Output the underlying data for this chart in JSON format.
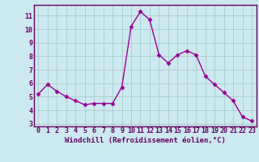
{
  "x": [
    0,
    1,
    2,
    3,
    4,
    5,
    6,
    7,
    8,
    9,
    10,
    11,
    12,
    13,
    14,
    15,
    16,
    17,
    18,
    19,
    20,
    21,
    22,
    23
  ],
  "y": [
    5.2,
    5.9,
    5.4,
    5.0,
    4.7,
    4.4,
    4.5,
    4.5,
    4.5,
    5.7,
    10.2,
    11.3,
    10.7,
    8.1,
    7.5,
    8.1,
    8.4,
    8.1,
    6.5,
    5.9,
    5.3,
    4.7,
    3.5,
    3.2
  ],
  "line_color": "#990099",
  "marker": "D",
  "markersize": 2.5,
  "linewidth": 1.0,
  "bg_color": "#cce8f0",
  "grid_color": "#aacccc",
  "xlabel": "Windchill (Refroidissement éolien,°C)",
  "label_color": "#660066",
  "ylabel_ticks": [
    3,
    4,
    5,
    6,
    7,
    8,
    9,
    10,
    11
  ],
  "xtick_labels": [
    "0",
    "1",
    "2",
    "3",
    "4",
    "5",
    "6",
    "7",
    "8",
    "9",
    "10",
    "11",
    "12",
    "13",
    "14",
    "15",
    "16",
    "17",
    "18",
    "19",
    "20",
    "21",
    "22",
    "23"
  ],
  "ylim": [
    2.8,
    11.8
  ],
  "xlim": [
    -0.5,
    23.5
  ],
  "tick_fontsize": 6,
  "xlabel_fontsize": 6.5
}
